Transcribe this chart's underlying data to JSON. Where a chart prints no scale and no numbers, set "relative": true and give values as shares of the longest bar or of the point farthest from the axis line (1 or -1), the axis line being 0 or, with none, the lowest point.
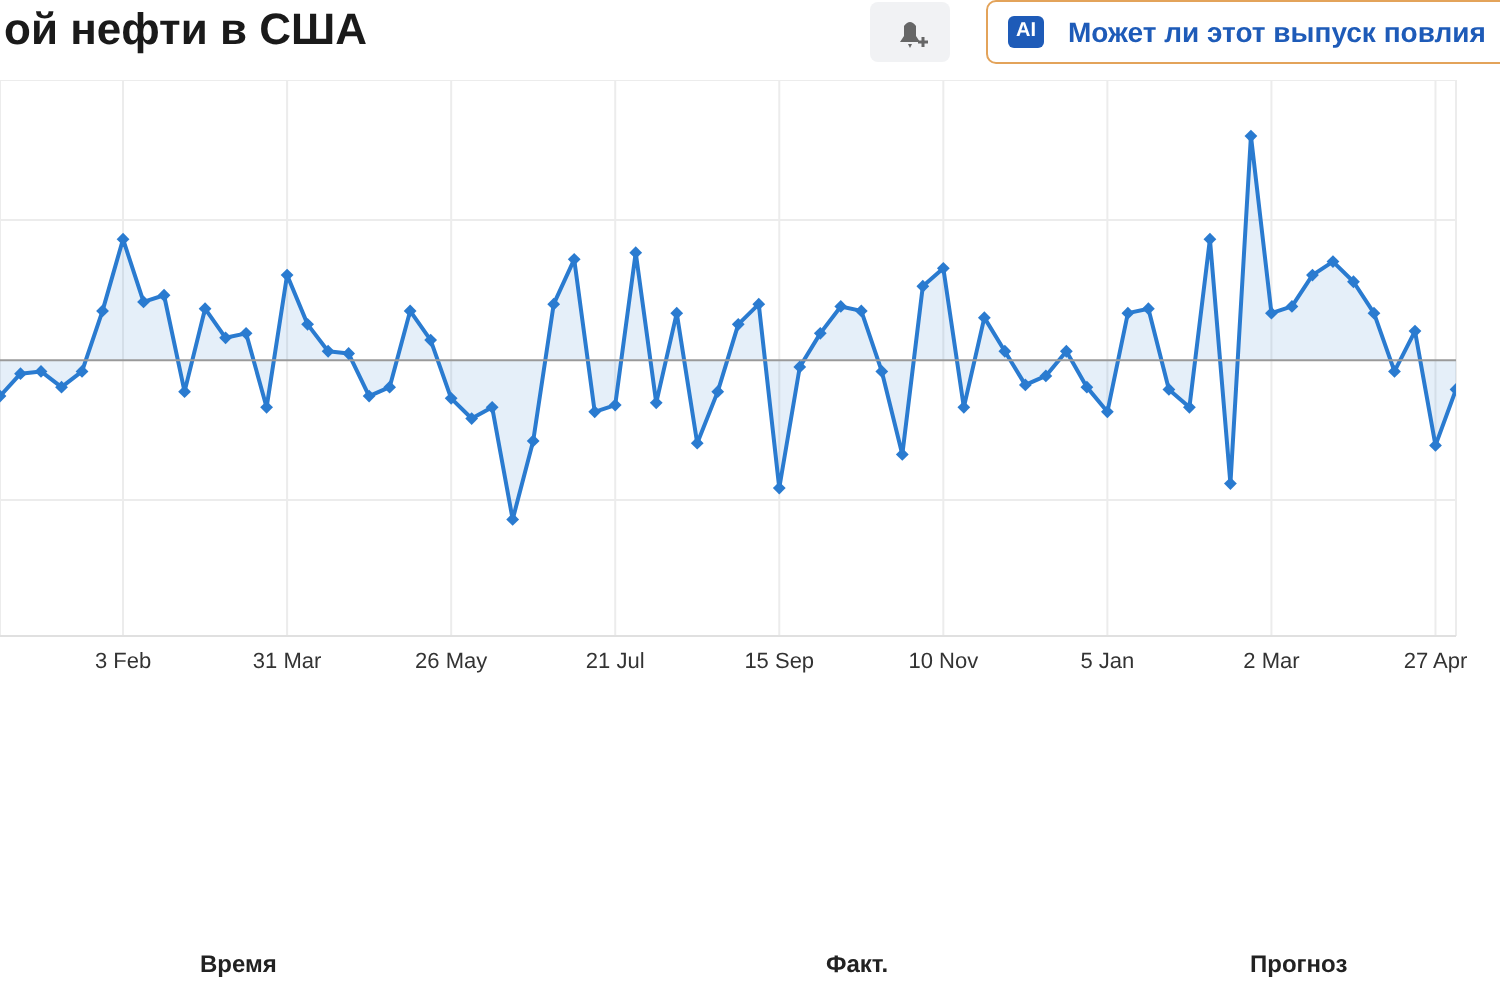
{
  "chart_data": {
    "type": "area",
    "title": "ой нефти в США",
    "relative": true,
    "categories": [
      null,
      null,
      null,
      null,
      null,
      null,
      "3 Feb",
      null,
      null,
      null,
      null,
      null,
      null,
      null,
      "31 Mar",
      null,
      null,
      null,
      null,
      null,
      null,
      null,
      "26 May",
      null,
      null,
      null,
      null,
      null,
      null,
      null,
      "21 Jul",
      null,
      null,
      null,
      null,
      null,
      null,
      null,
      "15 Sep",
      null,
      null,
      null,
      null,
      null,
      null,
      null,
      "10 Nov",
      null,
      null,
      null,
      null,
      null,
      null,
      null,
      "5 Jan",
      null,
      null,
      null,
      null,
      null,
      null,
      null,
      "2 Mar",
      null,
      null,
      null,
      null,
      null,
      null,
      null,
      "27 Apr",
      null
    ],
    "series": [
      {
        "color": "#2a7bd0",
        "values": [
          -0.16,
          -0.06,
          -0.05,
          -0.12,
          -0.05,
          0.22,
          0.54,
          0.26,
          0.29,
          -0.14,
          0.23,
          0.1,
          0.12,
          -0.21,
          0.38,
          0.16,
          0.04,
          0.03,
          -0.16,
          -0.12,
          0.22,
          0.09,
          -0.17,
          -0.26,
          -0.21,
          -0.71,
          -0.36,
          0.25,
          0.45,
          -0.23,
          -0.2,
          0.48,
          -0.19,
          0.21,
          -0.37,
          -0.14,
          0.16,
          0.25,
          -0.57,
          -0.03,
          0.12,
          0.24,
          0.22,
          -0.05,
          -0.42,
          0.33,
          0.41,
          -0.21,
          0.19,
          0.04,
          -0.11,
          -0.07,
          0.04,
          -0.12,
          -0.23,
          0.21,
          0.23,
          -0.13,
          -0.21,
          0.54,
          -0.55,
          1,
          0.21,
          0.24,
          0.38,
          0.44,
          0.35,
          0.21,
          -0.05,
          0.13,
          -0.38,
          -0.13
        ]
      }
    ],
    "marker": "diamond",
    "grid": true,
    "annotations": [
      "AI",
      "Может ли этот выпуск повлия",
      "Время",
      "Факт.",
      "Прогноз"
    ]
  }
}
